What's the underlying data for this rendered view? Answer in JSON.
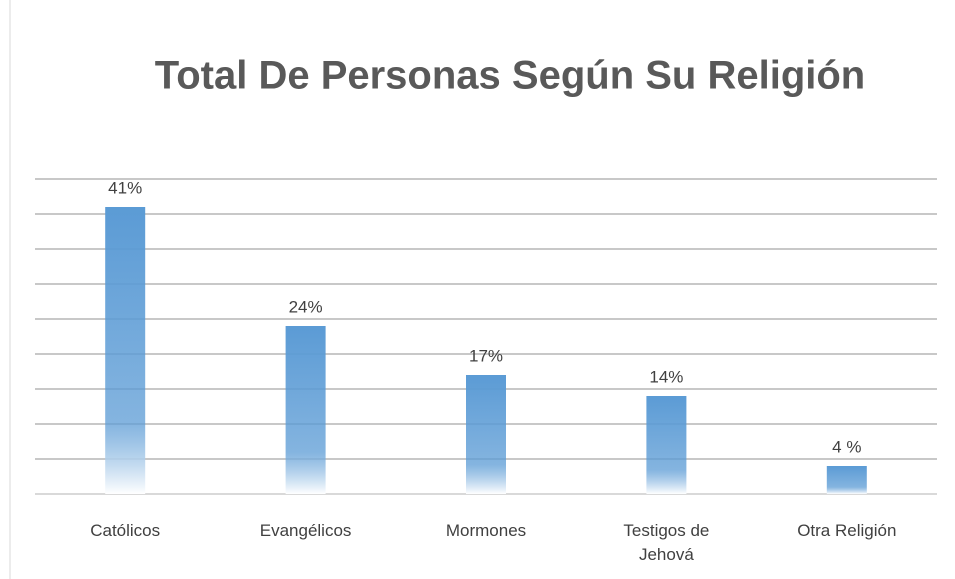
{
  "chart_data": {
    "type": "bar",
    "title": "Total De Personas Según Su Religión",
    "categories": [
      "Católicos",
      "Evangélicos",
      "Mormones",
      "Testigos de Jehová",
      "Otra Religión"
    ],
    "values": [
      41,
      24,
      17,
      14,
      4
    ],
    "value_labels": [
      "41%",
      "24%",
      "17%",
      "14%",
      "4 %"
    ],
    "color": "#5b9bd5",
    "ylim": [
      0,
      45
    ],
    "yticks": [
      0,
      5,
      10,
      15,
      20,
      25,
      30,
      35,
      40,
      45
    ],
    "grid": true
  }
}
